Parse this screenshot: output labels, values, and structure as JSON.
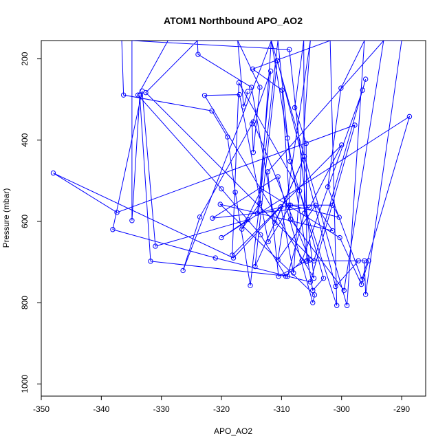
{
  "chart_data": {
    "type": "line",
    "title": "ATOM1 Northbound APO_AO2",
    "xlabel": "APO_AO2",
    "ylabel": "Pressure (mbar)",
    "xlim": [
      -350,
      -286
    ],
    "ylim": [
      1030,
      155
    ],
    "y_reversed": true,
    "grid": false,
    "color": "#0000ff",
    "x_ticks": [
      -350,
      -340,
      -330,
      -320,
      -310,
      -300,
      -290
    ],
    "y_ticks": [
      200,
      400,
      600,
      800,
      1000
    ],
    "series": [
      {
        "points": [
          [
            -336.6,
            155
          ],
          [
            -336.3,
            289
          ],
          [
            -321.6,
            328
          ],
          [
            -319.0,
            392
          ],
          [
            -317.7,
            528
          ],
          [
            -315.2,
            758
          ],
          [
            -310.6,
            155
          ],
          [
            -308.6,
            452
          ],
          [
            -300.8,
            807
          ],
          [
            -301.9,
            155
          ],
          [
            -314.8,
            225
          ],
          [
            -309.9,
            277
          ],
          [
            -308.5,
            595
          ],
          [
            -299.6,
            770
          ],
          [
            -293.0,
            155
          ],
          [
            -312.3,
            478
          ],
          [
            -310.5,
            735
          ],
          [
            -305.8,
            697
          ],
          [
            -296.2,
            697
          ],
          [
            -296.0,
            780
          ],
          [
            -290.0,
            155
          ],
          [
            -328.9,
            155
          ],
          [
            -333.9,
            289
          ],
          [
            -320.0,
            520
          ],
          [
            -313.5,
            633
          ],
          [
            -309.3,
            735
          ],
          [
            -306.6,
            697
          ],
          [
            -296.5,
            277
          ],
          [
            -296.0,
            250
          ],
          [
            -304.6,
            697
          ],
          [
            -332.6,
            283
          ],
          [
            -324.0,
            155
          ],
          [
            -323.9,
            189
          ],
          [
            -315.0,
            270
          ],
          [
            -311.1,
            604
          ],
          [
            -306.2,
            440
          ],
          [
            -314.4,
            711
          ],
          [
            -310.7,
            204
          ],
          [
            -301.0,
            760
          ],
          [
            -297.2,
            697
          ],
          [
            -295.5,
            697
          ],
          [
            -296.7,
            755
          ],
          [
            -300.3,
            640
          ],
          [
            -313.3,
            520
          ],
          [
            -316.6,
            619
          ],
          [
            -313.6,
            555
          ],
          [
            -311.7,
            155
          ],
          [
            -299.1,
            807
          ],
          [
            -296.2,
            155
          ],
          [
            -300.1,
            272
          ],
          [
            -302.3,
            515
          ],
          [
            -296.6,
            743
          ],
          [
            -288.7,
            342
          ],
          [
            -320.0,
            640
          ],
          [
            -315.6,
            596
          ],
          [
            -331.0,
            661
          ],
          [
            -333.2,
            279
          ],
          [
            -338.1,
            620
          ],
          [
            -321.0,
            690
          ],
          [
            -305.2,
            749
          ],
          [
            -297.8,
            363
          ],
          [
            -337.4,
            578
          ],
          [
            -348.0,
            481
          ],
          [
            -318.0,
            690
          ],
          [
            -310.1,
            564
          ],
          [
            -308.0,
            727
          ],
          [
            -305.2,
            155
          ],
          [
            -310.6,
            695
          ],
          [
            -304.3,
            560
          ],
          [
            -301.5,
            623
          ],
          [
            -320.2,
            558
          ],
          [
            -304.5,
            781
          ],
          [
            -304.8,
            800
          ],
          [
            -310.6,
            490
          ],
          [
            -321.5,
            592
          ],
          [
            -305.3,
            565
          ],
          [
            -300.0,
            412
          ],
          [
            -318.2,
            683
          ],
          [
            -317.1,
            259
          ],
          [
            -307.0,
            525
          ],
          [
            -303.0,
            740
          ],
          [
            -304.8,
            770
          ],
          [
            -309.0,
            395
          ],
          [
            -311.7,
            155
          ],
          [
            -326.4,
            721
          ],
          [
            -323.6,
            589
          ],
          [
            -314.7,
            355
          ],
          [
            -305.3,
            695
          ],
          [
            -305.8,
            698
          ],
          [
            -305.9,
            408
          ],
          [
            -307.8,
            320
          ],
          [
            -306.3,
            155
          ],
          [
            -306.2,
            580
          ],
          [
            -309.0,
            735
          ],
          [
            -331.8,
            698
          ],
          [
            -333.6,
            290
          ],
          [
            -334.9,
            598
          ],
          [
            -334.9,
            155
          ],
          [
            -308.7,
            177
          ],
          [
            -304.6,
            740
          ],
          [
            -322.8,
            290
          ],
          [
            -317.0,
            288
          ],
          [
            -312.2,
            650
          ],
          [
            -308.5,
            560
          ],
          [
            -300.4,
            590
          ],
          [
            -301.5,
            560
          ],
          [
            -308.8,
            560
          ],
          [
            -314.0,
            580
          ],
          [
            -311.8,
            230
          ],
          [
            -314.9,
            360
          ],
          [
            -314.7,
            430
          ],
          [
            -313.6,
            270
          ],
          [
            -317.3,
            155
          ],
          [
            -316.3,
            318
          ],
          [
            -315.6,
            280
          ]
        ]
      }
    ]
  }
}
